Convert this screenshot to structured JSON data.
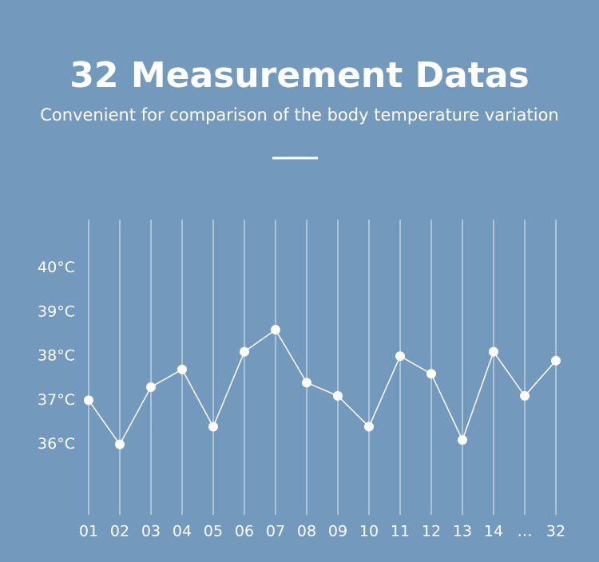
{
  "chart_data": {
    "type": "line",
    "title": "32 Measurement Datas",
    "subtitle": "Convenient for comparison of the body temperature variation",
    "categories": [
      "01",
      "02",
      "03",
      "04",
      "05",
      "06",
      "07",
      "08",
      "09",
      "10",
      "11",
      "12",
      "13",
      "14",
      "…",
      "32"
    ],
    "values": [
      37.0,
      36.0,
      37.3,
      37.7,
      36.4,
      38.1,
      38.6,
      37.4,
      37.1,
      36.4,
      38.0,
      37.6,
      36.1,
      38.1,
      37.1,
      37.9
    ],
    "color": "#ffffff",
    "ylim": [
      34.4,
      41.1
    ],
    "yticks": [
      {
        "value": 36,
        "label": "36°C"
      },
      {
        "value": 37,
        "label": "37°C"
      },
      {
        "value": 38,
        "label": "38°C"
      },
      {
        "value": 39,
        "label": "39°C"
      },
      {
        "value": 40,
        "label": "40°C"
      }
    ],
    "grid": true
  }
}
